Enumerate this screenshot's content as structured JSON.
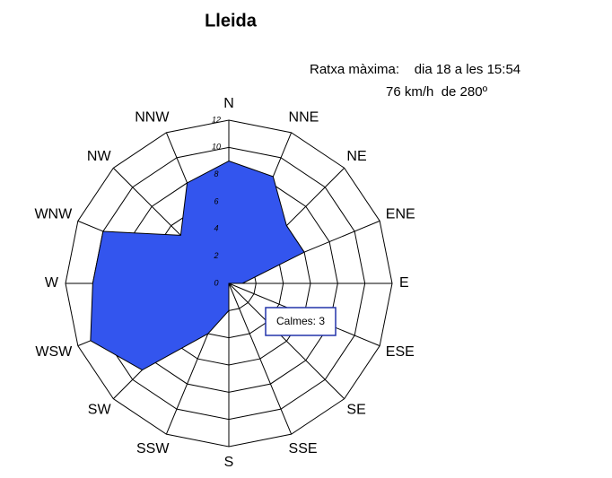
{
  "chart_data": {
    "type": "windrose",
    "title": "Lleida",
    "annotations": [
      "Ratxa màxima:    dia 18 a les 15:54",
      "76 km/h  de 280º",
      "Calmes: 3"
    ],
    "categories": [
      "N",
      "NNE",
      "NE",
      "ENE",
      "E",
      "ESE",
      "SE",
      "SSE",
      "S",
      "SSW",
      "SW",
      "WSW",
      "W",
      "WNW",
      "NW",
      "NNW"
    ],
    "values": [
      9,
      8.5,
      6,
      6,
      1,
      0,
      0,
      0,
      2,
      4,
      9,
      11,
      10,
      10,
      5,
      8
    ],
    "color": "#3355ee",
    "rlim": [
      0,
      12
    ],
    "rticks": [
      0,
      2,
      4,
      6,
      8,
      10,
      12
    ],
    "grid": true
  }
}
